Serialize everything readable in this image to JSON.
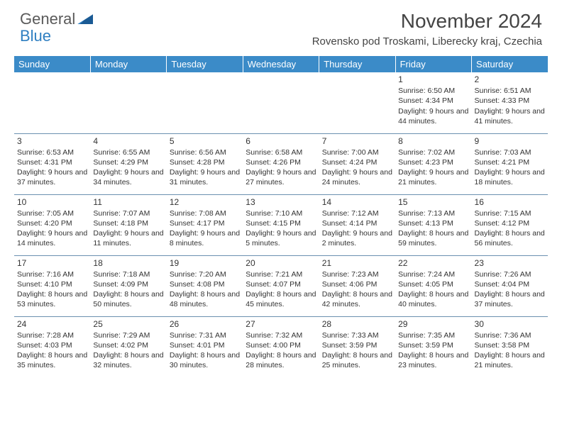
{
  "logo": {
    "text1": "General",
    "text2": "Blue"
  },
  "title": "November 2024",
  "location": "Rovensko pod Troskami, Liberecky kraj, Czechia",
  "columns": [
    "Sunday",
    "Monday",
    "Tuesday",
    "Wednesday",
    "Thursday",
    "Friday",
    "Saturday"
  ],
  "colors": {
    "header_bg": "#3b8bc8",
    "header_text": "#ffffff",
    "cell_border": "#6b90b0",
    "body_text": "#333333"
  },
  "weeks": [
    [
      null,
      null,
      null,
      null,
      null,
      {
        "n": "1",
        "sr": "6:50 AM",
        "ss": "4:34 PM",
        "dl": "9 hours and 44 minutes."
      },
      {
        "n": "2",
        "sr": "6:51 AM",
        "ss": "4:33 PM",
        "dl": "9 hours and 41 minutes."
      }
    ],
    [
      {
        "n": "3",
        "sr": "6:53 AM",
        "ss": "4:31 PM",
        "dl": "9 hours and 37 minutes."
      },
      {
        "n": "4",
        "sr": "6:55 AM",
        "ss": "4:29 PM",
        "dl": "9 hours and 34 minutes."
      },
      {
        "n": "5",
        "sr": "6:56 AM",
        "ss": "4:28 PM",
        "dl": "9 hours and 31 minutes."
      },
      {
        "n": "6",
        "sr": "6:58 AM",
        "ss": "4:26 PM",
        "dl": "9 hours and 27 minutes."
      },
      {
        "n": "7",
        "sr": "7:00 AM",
        "ss": "4:24 PM",
        "dl": "9 hours and 24 minutes."
      },
      {
        "n": "8",
        "sr": "7:02 AM",
        "ss": "4:23 PM",
        "dl": "9 hours and 21 minutes."
      },
      {
        "n": "9",
        "sr": "7:03 AM",
        "ss": "4:21 PM",
        "dl": "9 hours and 18 minutes."
      }
    ],
    [
      {
        "n": "10",
        "sr": "7:05 AM",
        "ss": "4:20 PM",
        "dl": "9 hours and 14 minutes."
      },
      {
        "n": "11",
        "sr": "7:07 AM",
        "ss": "4:18 PM",
        "dl": "9 hours and 11 minutes."
      },
      {
        "n": "12",
        "sr": "7:08 AM",
        "ss": "4:17 PM",
        "dl": "9 hours and 8 minutes."
      },
      {
        "n": "13",
        "sr": "7:10 AM",
        "ss": "4:15 PM",
        "dl": "9 hours and 5 minutes."
      },
      {
        "n": "14",
        "sr": "7:12 AM",
        "ss": "4:14 PM",
        "dl": "9 hours and 2 minutes."
      },
      {
        "n": "15",
        "sr": "7:13 AM",
        "ss": "4:13 PM",
        "dl": "8 hours and 59 minutes."
      },
      {
        "n": "16",
        "sr": "7:15 AM",
        "ss": "4:12 PM",
        "dl": "8 hours and 56 minutes."
      }
    ],
    [
      {
        "n": "17",
        "sr": "7:16 AM",
        "ss": "4:10 PM",
        "dl": "8 hours and 53 minutes."
      },
      {
        "n": "18",
        "sr": "7:18 AM",
        "ss": "4:09 PM",
        "dl": "8 hours and 50 minutes."
      },
      {
        "n": "19",
        "sr": "7:20 AM",
        "ss": "4:08 PM",
        "dl": "8 hours and 48 minutes."
      },
      {
        "n": "20",
        "sr": "7:21 AM",
        "ss": "4:07 PM",
        "dl": "8 hours and 45 minutes."
      },
      {
        "n": "21",
        "sr": "7:23 AM",
        "ss": "4:06 PM",
        "dl": "8 hours and 42 minutes."
      },
      {
        "n": "22",
        "sr": "7:24 AM",
        "ss": "4:05 PM",
        "dl": "8 hours and 40 minutes."
      },
      {
        "n": "23",
        "sr": "7:26 AM",
        "ss": "4:04 PM",
        "dl": "8 hours and 37 minutes."
      }
    ],
    [
      {
        "n": "24",
        "sr": "7:28 AM",
        "ss": "4:03 PM",
        "dl": "8 hours and 35 minutes."
      },
      {
        "n": "25",
        "sr": "7:29 AM",
        "ss": "4:02 PM",
        "dl": "8 hours and 32 minutes."
      },
      {
        "n": "26",
        "sr": "7:31 AM",
        "ss": "4:01 PM",
        "dl": "8 hours and 30 minutes."
      },
      {
        "n": "27",
        "sr": "7:32 AM",
        "ss": "4:00 PM",
        "dl": "8 hours and 28 minutes."
      },
      {
        "n": "28",
        "sr": "7:33 AM",
        "ss": "3:59 PM",
        "dl": "8 hours and 25 minutes."
      },
      {
        "n": "29",
        "sr": "7:35 AM",
        "ss": "3:59 PM",
        "dl": "8 hours and 23 minutes."
      },
      {
        "n": "30",
        "sr": "7:36 AM",
        "ss": "3:58 PM",
        "dl": "8 hours and 21 minutes."
      }
    ]
  ],
  "labels": {
    "sunrise": "Sunrise:",
    "sunset": "Sunset:",
    "daylight": "Daylight:"
  }
}
